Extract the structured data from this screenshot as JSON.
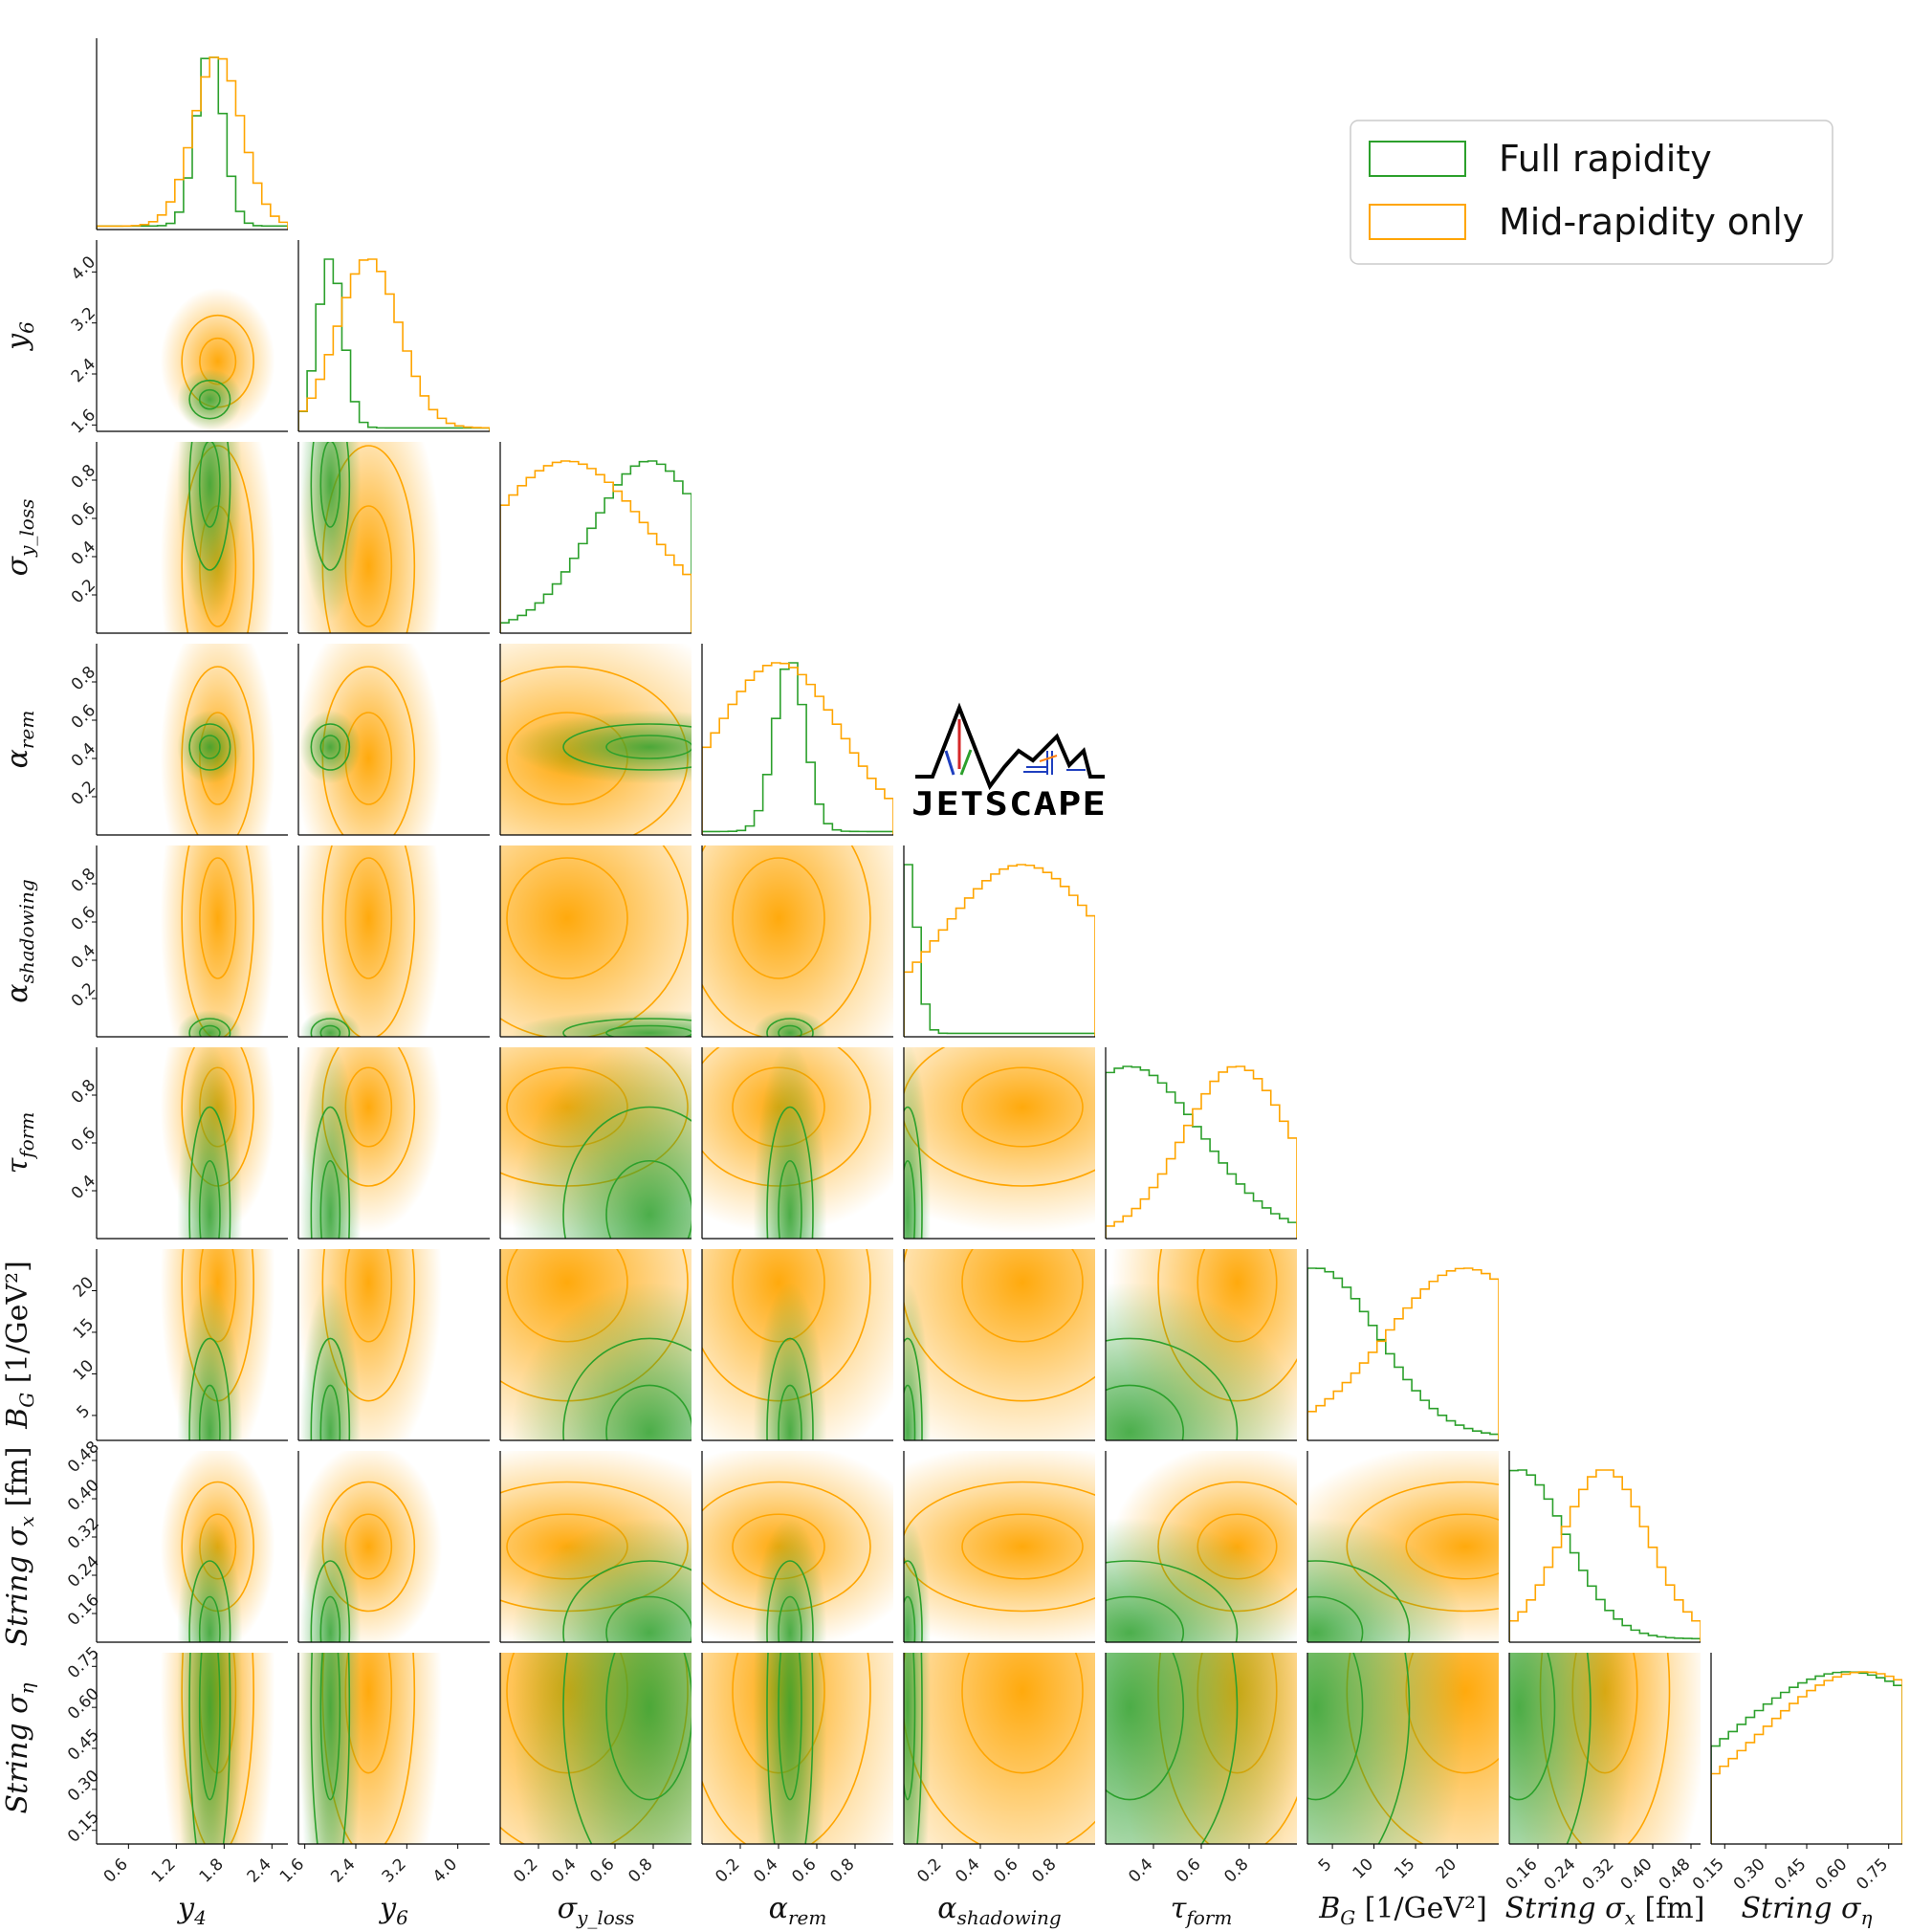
{
  "chart_data": {
    "type": "corner",
    "grid": false,
    "legend_position": "top-right",
    "colors": {
      "full": "#2ca02c",
      "mid": "#ffa500"
    },
    "series": [
      {
        "key": "full",
        "name": "Full rapidity"
      },
      {
        "key": "mid",
        "name": "Mid-rapidity only"
      }
    ],
    "logo_text": "JETSCAPE",
    "parameters": [
      {
        "label": "y_4",
        "label_main": "y",
        "label_sub": "4",
        "range": [
          0.2,
          2.6
        ],
        "ticks": [
          "0.6",
          "1.2",
          "1.8",
          "2.4"
        ],
        "full": {
          "mean": 1.62,
          "sd": 0.17
        },
        "mid": {
          "mean": 1.72,
          "sd": 0.3
        }
      },
      {
        "label": "y_6",
        "label_main": "y",
        "label_sub": "6",
        "range": [
          1.5,
          4.5
        ],
        "ticks": [
          "1.6",
          "2.4",
          "3.2",
          "4.0"
        ],
        "full": {
          "mean": 2.0,
          "sd": 0.2
        },
        "mid": {
          "mean": 2.6,
          "sd": 0.48
        }
      },
      {
        "label": "σ_yloss",
        "label_main": "σ",
        "label_sub": "y_loss",
        "range": [
          0.0,
          1.0
        ],
        "ticks": [
          "0.2",
          "0.4",
          "0.6",
          "0.8"
        ],
        "full": {
          "mean": 0.78,
          "sd": 0.3
        },
        "mid": {
          "mean": 0.35,
          "sd": 0.42
        }
      },
      {
        "label": "α_rem",
        "label_main": "α",
        "label_sub": "rem",
        "range": [
          0.0,
          1.0
        ],
        "ticks": [
          "0.2",
          "0.4",
          "0.6",
          "0.8"
        ],
        "full": {
          "mean": 0.46,
          "sd": 0.08
        },
        "mid": {
          "mean": 0.4,
          "sd": 0.32
        }
      },
      {
        "label": "α_shadowing",
        "label_main": "α",
        "label_sub": "shadowing",
        "range": [
          0.0,
          1.0
        ],
        "ticks": [
          "0.2",
          "0.4",
          "0.6",
          "0.8"
        ],
        "full": {
          "mean": 0.02,
          "sd": 0.05
        },
        "mid": {
          "mean": 0.62,
          "sd": 0.42
        }
      },
      {
        "label": "τ_form",
        "label_main": "τ",
        "label_sub": "form",
        "range": [
          0.2,
          1.0
        ],
        "ticks": [
          "0.4",
          "0.6",
          "0.8"
        ],
        "full": {
          "mean": 0.3,
          "sd": 0.3
        },
        "mid": {
          "mean": 0.75,
          "sd": 0.22
        }
      },
      {
        "label": "B_G [1/GeV²]",
        "label_main": "B",
        "label_sub": "G",
        "label_suffix": " [1/GeV²]",
        "range": [
          2,
          25
        ],
        "ticks": [
          "5",
          "10",
          "15",
          "20"
        ],
        "full": {
          "mean": 3.0,
          "sd": 7.5
        },
        "mid": {
          "mean": 21.0,
          "sd": 9.5
        }
      },
      {
        "label": "String σ_x [fm]",
        "label_main": "String σ",
        "label_sub": "x",
        "label_suffix": " [fm]",
        "range": [
          0.1,
          0.5
        ],
        "ticks": [
          "0.16",
          "0.24",
          "0.32",
          "0.40",
          "0.48"
        ],
        "full": {
          "mean": 0.12,
          "sd": 0.1
        },
        "mid": {
          "mean": 0.3,
          "sd": 0.09
        }
      },
      {
        "label": "String σ_η",
        "label_main": "String σ",
        "label_sub": "η",
        "range": [
          0.1,
          0.8
        ],
        "ticks": [
          "0.15",
          "0.30",
          "0.45",
          "0.60",
          "0.75"
        ],
        "full": {
          "mean": 0.6,
          "sd": 0.45
        },
        "mid": {
          "mean": 0.66,
          "sd": 0.4
        }
      }
    ]
  }
}
